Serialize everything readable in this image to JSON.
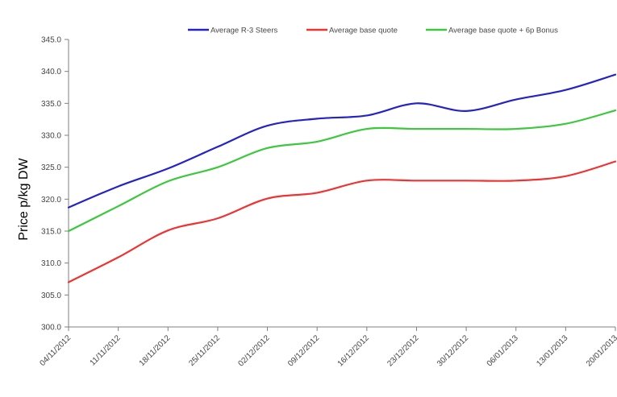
{
  "chart_data": {
    "type": "line",
    "title": "",
    "xlabel": "",
    "ylabel": "Price p/kg DW",
    "ylim": [
      300,
      345
    ],
    "yticks": [
      "300.0",
      "305.0",
      "310.0",
      "315.0",
      "320.0",
      "325.0",
      "330.0",
      "335.0",
      "340.0",
      "345.0"
    ],
    "categories": [
      "04/11/2012",
      "11/11/2012",
      "18/11/2012",
      "25/11/2012",
      "02/12/2012",
      "09/12/2012",
      "16/12/2012",
      "23/12/2012",
      "30/12/2012",
      "06/01/2013",
      "13/01/2013",
      "20/01/2013"
    ],
    "grid": false,
    "legend_position": "top",
    "series": [
      {
        "name": "Average R-3 Steers",
        "color": "#2323c8",
        "values": [
          318.7,
          322.0,
          324.8,
          328.2,
          331.5,
          332.6,
          333.1,
          335.0,
          333.8,
          335.6,
          337.1,
          339.5
        ]
      },
      {
        "name": "Average base quote",
        "color": "#f03232",
        "values": [
          307.0,
          310.9,
          315.1,
          317.0,
          320.1,
          321.0,
          322.9,
          322.9,
          322.9,
          322.9,
          323.6,
          325.9
        ]
      },
      {
        "name": "Average base quote + 6p Bonus",
        "color": "#3cc83c",
        "values": [
          315.0,
          318.9,
          322.8,
          325.0,
          328.0,
          329.0,
          331.0,
          331.0,
          331.0,
          331.0,
          331.8,
          333.9
        ]
      }
    ]
  }
}
